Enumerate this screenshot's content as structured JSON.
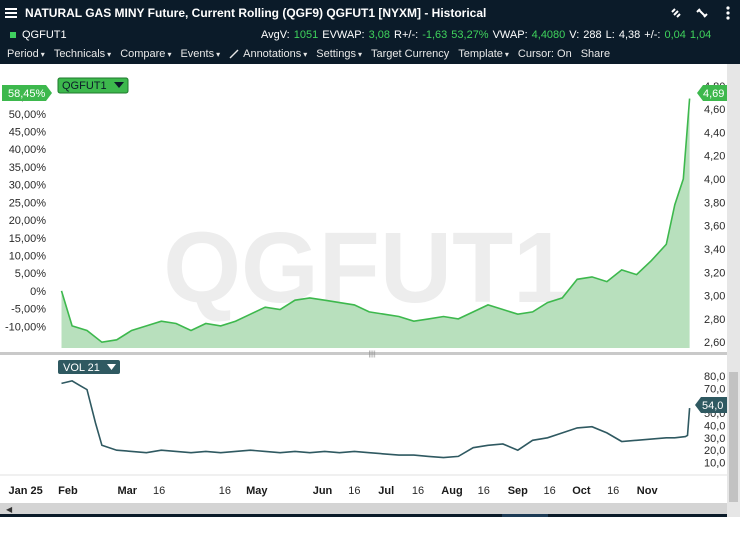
{
  "window": {
    "title": "NATURAL GAS MINY Future, Current Rolling (QGF9) QGFUT1 [NYXM] - Historical"
  },
  "quote": {
    "symbol": "QGFUT1",
    "avgv_label": "AvgV:",
    "avgv_value": "1051",
    "evwap_label": "EVWAP:",
    "evwap_value": "3,08",
    "rchg_label": "R+/-:",
    "rchg_value": "-1,63",
    "rchg_pct": "53,27%",
    "vwap_label": "VWAP:",
    "vwap_value": "4,4080",
    "v_label": "V:",
    "v_value": "288",
    "l_label": "L:",
    "l_value": "4,38",
    "chg_label": "+/-:",
    "chg_value": "0,04",
    "chg_extra": "1,04"
  },
  "menu": {
    "items": [
      {
        "label": "Period",
        "caret": "▾"
      },
      {
        "label": "Technicals",
        "caret": "▾"
      },
      {
        "label": "Compare",
        "caret": "▾"
      },
      {
        "label": "Events",
        "caret": "▾"
      },
      {
        "label": "Annotations",
        "caret": "▾"
      },
      {
        "label": "Settings",
        "caret": "▾"
      },
      {
        "label": "Target Currency",
        "caret": ""
      },
      {
        "label": "Template",
        "caret": "▾"
      },
      {
        "label": "Cursor: On",
        "caret": ""
      },
      {
        "label": "Share",
        "caret": ""
      }
    ]
  },
  "chart_data": [
    {
      "type": "area",
      "series_label": "QGFUT1",
      "watermark": "QGFUT1",
      "last_pct_label": "58,45%",
      "last_price_label": "4,69",
      "left_axis_ticks": [
        "55,00%",
        "50,00%",
        "45,00%",
        "40,00%",
        "35,00%",
        "30,00%",
        "25,00%",
        "20,00%",
        "15,00%",
        "10,00%",
        "5,00%",
        "0%",
        "-5,00%",
        "-10,00%"
      ],
      "left_axis_values": [
        55,
        50,
        45,
        40,
        35,
        30,
        25,
        20,
        15,
        10,
        5,
        0,
        -5,
        -10
      ],
      "right_axis_ticks": [
        "4,80",
        "4,60",
        "4,40",
        "4,20",
        "4,00",
        "3,80",
        "3,60",
        "3,40",
        "3,20",
        "3,00",
        "2,80",
        "2,60"
      ],
      "right_axis_values": [
        4.8,
        4.6,
        4.4,
        4.2,
        4.0,
        3.8,
        3.6,
        3.4,
        3.2,
        3.0,
        2.8,
        2.6
      ],
      "x_dates": [
        "2025-01-29",
        "2025-02-03",
        "2025-02-10",
        "2025-02-17",
        "2025-02-24",
        "2025-03-03",
        "2025-03-10",
        "2025-03-17",
        "2025-03-24",
        "2025-03-31",
        "2025-04-07",
        "2025-04-14",
        "2025-04-21",
        "2025-04-28",
        "2025-05-05",
        "2025-05-12",
        "2025-05-19",
        "2025-05-26",
        "2025-06-02",
        "2025-06-09",
        "2025-06-16",
        "2025-06-23",
        "2025-06-30",
        "2025-07-07",
        "2025-07-14",
        "2025-07-21",
        "2025-07-28",
        "2025-08-04",
        "2025-08-11",
        "2025-08-18",
        "2025-08-25",
        "2025-09-01",
        "2025-09-08",
        "2025-09-15",
        "2025-09-22",
        "2025-09-29",
        "2025-10-06",
        "2025-10-13",
        "2025-10-20",
        "2025-10-27",
        "2025-11-03",
        "2025-11-10",
        "2025-11-14",
        "2025-11-18",
        "2025-11-21"
      ],
      "y_values": [
        3.04,
        2.74,
        2.7,
        2.6,
        2.62,
        2.7,
        2.74,
        2.78,
        2.76,
        2.7,
        2.76,
        2.74,
        2.78,
        2.84,
        2.9,
        2.88,
        2.96,
        2.98,
        2.96,
        2.94,
        2.92,
        2.86,
        2.84,
        2.82,
        2.78,
        2.8,
        2.82,
        2.8,
        2.86,
        2.92,
        2.88,
        2.84,
        2.86,
        2.94,
        2.98,
        3.14,
        3.16,
        3.12,
        3.22,
        3.18,
        3.3,
        3.44,
        3.78,
        4.0,
        4.69
      ],
      "y_range": [
        2.55,
        4.85
      ]
    },
    {
      "type": "line",
      "series_label": "VOL 21",
      "last_value_label": "54,0",
      "y_axis_ticks": [
        "80,0",
        "70,0",
        "60,0",
        "50,0",
        "40,0",
        "30,0",
        "20,0",
        "10,0"
      ],
      "y_axis_values": [
        80,
        70,
        60,
        50,
        40,
        30,
        20,
        10
      ],
      "x_dates": [
        "2025-01-29",
        "2025-02-03",
        "2025-02-07",
        "2025-02-10",
        "2025-02-14",
        "2025-02-17",
        "2025-02-24",
        "2025-03-03",
        "2025-03-10",
        "2025-03-17",
        "2025-03-24",
        "2025-03-31",
        "2025-04-07",
        "2025-04-14",
        "2025-04-21",
        "2025-04-28",
        "2025-05-05",
        "2025-05-12",
        "2025-05-19",
        "2025-05-26",
        "2025-06-02",
        "2025-06-09",
        "2025-06-16",
        "2025-06-23",
        "2025-06-30",
        "2025-07-07",
        "2025-07-14",
        "2025-07-21",
        "2025-07-28",
        "2025-08-04",
        "2025-08-11",
        "2025-08-18",
        "2025-08-25",
        "2025-09-01",
        "2025-09-08",
        "2025-09-15",
        "2025-09-22",
        "2025-09-29",
        "2025-10-06",
        "2025-10-13",
        "2025-10-20",
        "2025-10-27",
        "2025-11-03",
        "2025-11-10",
        "2025-11-14",
        "2025-11-19",
        "2025-11-20",
        "2025-11-21"
      ],
      "y_values": [
        74,
        76,
        72,
        69,
        42,
        24,
        20,
        19,
        18,
        20,
        19,
        18,
        19,
        18,
        19,
        20,
        19,
        18,
        19,
        18,
        19,
        18,
        19,
        18,
        17,
        16,
        16,
        15,
        14,
        15,
        22,
        24,
        25,
        20,
        28,
        30,
        34,
        38,
        39,
        34,
        27,
        28,
        29,
        30,
        30,
        31,
        32,
        54
      ],
      "y_range": [
        4,
        84
      ]
    }
  ],
  "x_axis": {
    "labels": [
      {
        "text": "Jan 25",
        "date": "2025-01-04",
        "major": true
      },
      {
        "text": "Feb",
        "date": "2025-02-01",
        "major": true
      },
      {
        "text": "Mar",
        "date": "2025-03-01",
        "major": true
      },
      {
        "text": "16",
        "date": "2025-03-16",
        "major": false
      },
      {
        "text": "16",
        "date": "2025-04-16",
        "major": false
      },
      {
        "text": "May",
        "date": "2025-05-01",
        "major": true
      },
      {
        "text": "Jun",
        "date": "2025-06-01",
        "major": true
      },
      {
        "text": "16",
        "date": "2025-06-16",
        "major": false
      },
      {
        "text": "Jul",
        "date": "2025-07-01",
        "major": true
      },
      {
        "text": "16",
        "date": "2025-07-16",
        "major": false
      },
      {
        "text": "Aug",
        "date": "2025-08-01",
        "major": true
      },
      {
        "text": "16",
        "date": "2025-08-16",
        "major": false
      },
      {
        "text": "Sep",
        "date": "2025-09-01",
        "major": true
      },
      {
        "text": "16",
        "date": "2025-09-16",
        "major": false
      },
      {
        "text": "Oct",
        "date": "2025-10-01",
        "major": true
      },
      {
        "text": "16",
        "date": "2025-10-16",
        "major": false
      },
      {
        "text": "Nov",
        "date": "2025-11-01",
        "major": true
      }
    ],
    "range": [
      "2024-12-31",
      "2025-11-24"
    ]
  },
  "colors": {
    "titlebar_bg": "#0b1b29",
    "quote_green": "#3fd35c",
    "area_line": "#3db84d",
    "area_fill": "#b8e0bd",
    "pct_badge": "#3db84d",
    "vol_line": "#2f5961",
    "vol_badge": "#2f5961",
    "watermark": "#ededed"
  },
  "icons": {
    "menu": "hamburger-icon",
    "link": "link-icon",
    "unlink": "unlink-icon",
    "more": "more-icon",
    "draw": "pen-icon",
    "dropdown": "chevron-down-icon"
  }
}
